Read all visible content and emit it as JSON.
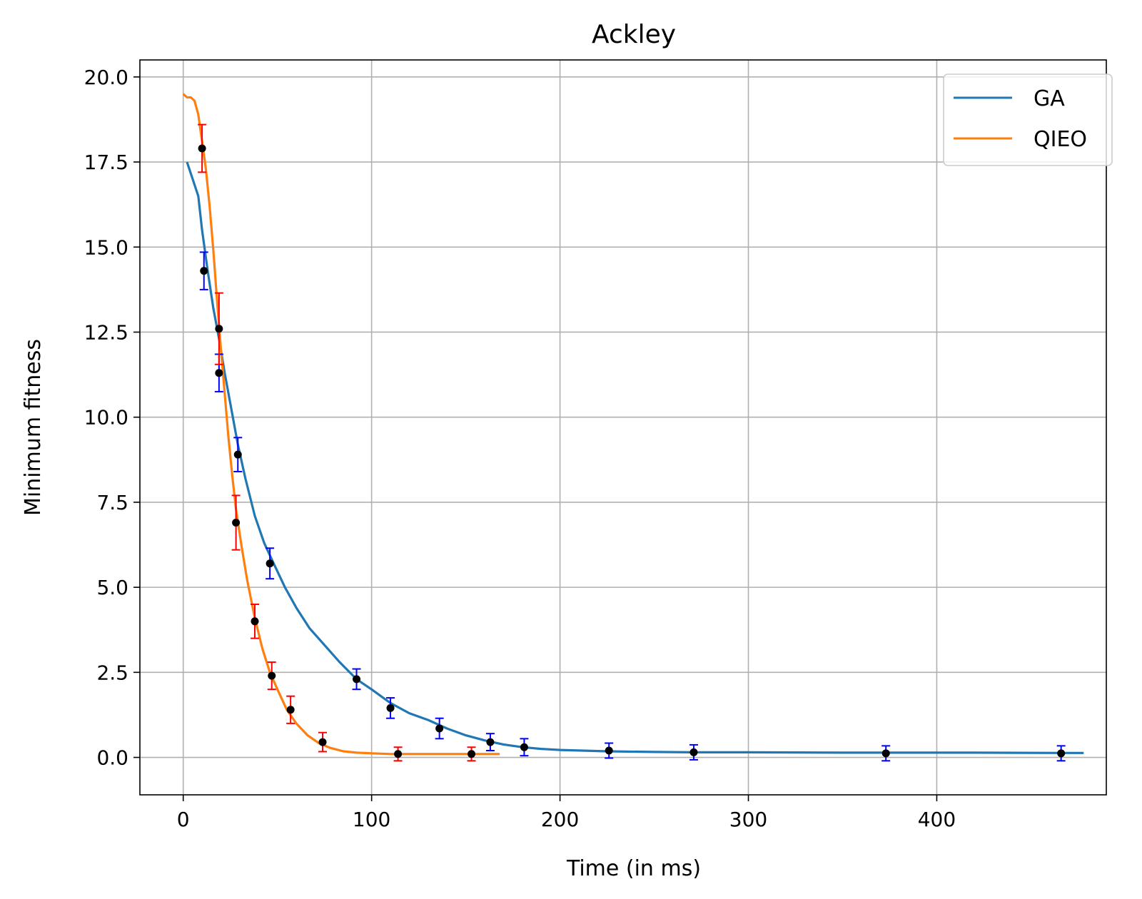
{
  "chart_data": {
    "type": "line",
    "title": "Ackley",
    "xlabel": "Time (in ms)",
    "ylabel": "Minimum fitness",
    "xlim": [
      -23,
      490
    ],
    "ylim": [
      -1.1,
      20.5
    ],
    "xticks": [
      0,
      100,
      200,
      300,
      400
    ],
    "yticks": [
      0.0,
      2.5,
      5.0,
      7.5,
      10.0,
      12.5,
      15.0,
      17.5,
      20.0
    ],
    "xtick_labels": [
      "0",
      "100",
      "200",
      "300",
      "400"
    ],
    "ytick_labels": [
      "0.0",
      "2.5",
      "5.0",
      "7.5",
      "10.0",
      "12.5",
      "15.0",
      "17.5",
      "20.0"
    ],
    "grid": true,
    "legend_position": "top-right",
    "series": [
      {
        "name": "GA",
        "color": "#1f77b4",
        "errorbar_color": "#0000ff",
        "x": [
          2,
          5,
          8,
          10,
          13,
          16,
          19,
          22,
          25,
          29,
          33,
          38,
          43,
          48,
          54,
          60,
          67,
          75,
          83,
          92,
          100,
          110,
          120,
          130,
          140,
          150,
          160,
          170,
          180,
          190,
          200,
          225,
          250,
          270,
          300,
          350,
          373,
          420,
          466,
          478
        ],
        "y": [
          17.5,
          17.0,
          16.5,
          15.5,
          14.3,
          13.2,
          12.3,
          11.3,
          10.4,
          9.2,
          8.2,
          7.1,
          6.3,
          5.7,
          5.0,
          4.4,
          3.8,
          3.3,
          2.8,
          2.3,
          2.0,
          1.6,
          1.3,
          1.1,
          0.85,
          0.65,
          0.5,
          0.38,
          0.3,
          0.25,
          0.22,
          0.18,
          0.16,
          0.15,
          0.15,
          0.14,
          0.14,
          0.14,
          0.13,
          0.13
        ],
        "markers": {
          "x": [
            11,
            19,
            29,
            46,
            92,
            110,
            136,
            163,
            181,
            226,
            271,
            373,
            466
          ],
          "y": [
            14.3,
            11.3,
            8.9,
            5.7,
            2.3,
            1.45,
            0.85,
            0.45,
            0.3,
            0.2,
            0.15,
            0.12,
            0.12
          ],
          "err": [
            0.55,
            0.55,
            0.5,
            0.45,
            0.3,
            0.3,
            0.3,
            0.25,
            0.25,
            0.22,
            0.22,
            0.22,
            0.22
          ]
        }
      },
      {
        "name": "QIEO",
        "color": "#ff7f0e",
        "errorbar_color": "#ff0000",
        "x": [
          0,
          2,
          4,
          6,
          8,
          10,
          12,
          14,
          16,
          18,
          20,
          22,
          24,
          26,
          28,
          31,
          34,
          38,
          42,
          46,
          50,
          55,
          60,
          66,
          72,
          78,
          85,
          92,
          100,
          110,
          120,
          135,
          150,
          168
        ],
        "y": [
          19.5,
          19.4,
          19.4,
          19.3,
          18.9,
          18.1,
          17.3,
          16.2,
          14.9,
          13.4,
          12.0,
          10.7,
          9.4,
          8.3,
          7.3,
          6.2,
          5.2,
          4.1,
          3.2,
          2.5,
          2.0,
          1.4,
          1.0,
          0.65,
          0.42,
          0.28,
          0.18,
          0.14,
          0.12,
          0.1,
          0.1,
          0.1,
          0.1,
          0.1
        ],
        "markers": {
          "x": [
            10,
            19,
            28,
            38,
            47,
            57,
            74,
            114,
            153
          ],
          "y": [
            17.9,
            12.6,
            6.9,
            4.0,
            2.4,
            1.4,
            0.45,
            0.1,
            0.1
          ],
          "err": [
            0.7,
            1.05,
            0.8,
            0.5,
            0.4,
            0.4,
            0.28,
            0.2,
            0.2
          ]
        }
      }
    ]
  }
}
